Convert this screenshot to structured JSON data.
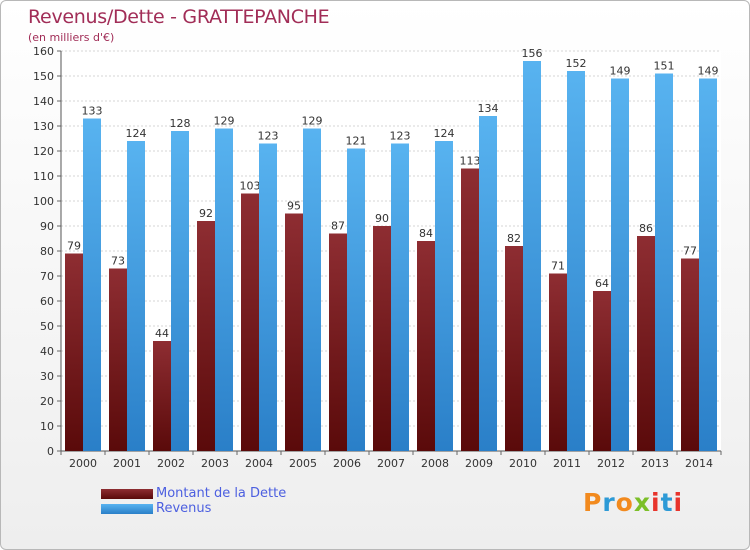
{
  "header": {
    "title": "Revenus/Dette - GRATTEPANCHE",
    "subtitle": "(en milliers d'€)"
  },
  "legend": {
    "items": [
      {
        "label": "Montant de la Dette"
      },
      {
        "label": "Revenus"
      }
    ]
  },
  "logo": {
    "letters": [
      "P",
      "r",
      "o",
      "x",
      "i",
      "t",
      "i"
    ],
    "colors": [
      "#f28a1e",
      "#2d9ad6",
      "#f28a1e",
      "#7cbf28",
      "#e8342c",
      "#2d9ad6",
      "#e8342c"
    ]
  },
  "colors": {
    "dette_top": "#8e2d32",
    "dette_bottom": "#5a0a0a",
    "revenus_top": "#58b3f0",
    "revenus_bottom": "#2a7fc8",
    "title": "#a12d57",
    "legend_text": "#4c5fe0"
  },
  "chart_data": {
    "type": "bar",
    "title": "Revenus/Dette - GRATTEPANCHE",
    "subtitle": "(en milliers d'€)",
    "categories": [
      "2000",
      "2001",
      "2002",
      "2003",
      "2004",
      "2005",
      "2006",
      "2007",
      "2008",
      "2009",
      "2010",
      "2011",
      "2012",
      "2013",
      "2014"
    ],
    "series": [
      {
        "name": "Montant de la Dette",
        "values": [
          79,
          73,
          44,
          92,
          103,
          95,
          87,
          90,
          84,
          113,
          82,
          71,
          64,
          86,
          77
        ]
      },
      {
        "name": "Revenus",
        "values": [
          133,
          124,
          128,
          129,
          123,
          129,
          121,
          123,
          124,
          134,
          156,
          152,
          149,
          151,
          149
        ]
      }
    ],
    "ylim": [
      0,
      160
    ],
    "yticks": [
      0,
      10,
      20,
      30,
      40,
      50,
      60,
      70,
      80,
      90,
      100,
      110,
      120,
      130,
      140,
      150,
      160
    ],
    "grid": true,
    "data_labels": true,
    "legend_position": "bottom-left"
  }
}
